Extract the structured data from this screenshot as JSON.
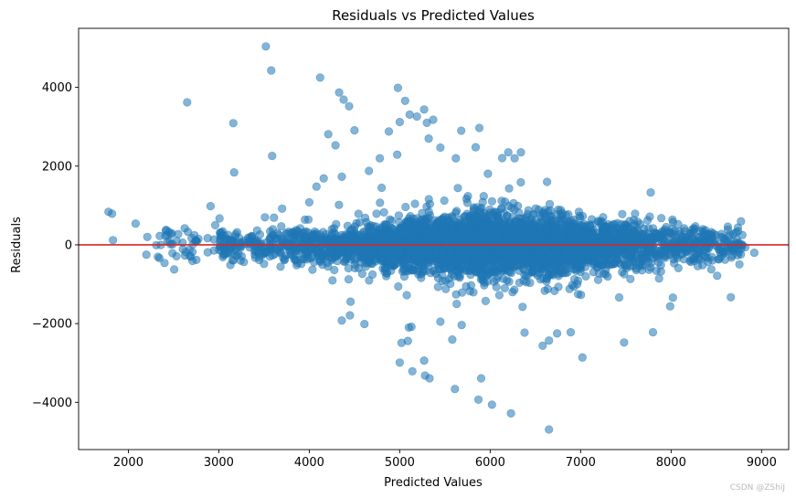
{
  "chart_data": {
    "type": "scatter",
    "title": "Residuals vs Predicted Values",
    "xlabel": "Predicted Values",
    "ylabel": "Residuals",
    "xlim": [
      1450,
      9300
    ],
    "ylim": [
      -5200,
      5500
    ],
    "xticks": [
      2000,
      3000,
      4000,
      5000,
      6000,
      7000,
      8000,
      9000
    ],
    "yticks": [
      -4000,
      -2000,
      0,
      2000,
      4000
    ],
    "ytick_labels": [
      "−4000",
      "−2000",
      "0",
      "2000",
      "4000"
    ],
    "grid": false,
    "legend": "none",
    "reference_line": {
      "y": 0,
      "color": "#d62728"
    },
    "marker_color": "#1f77b4",
    "marker_alpha": 0.55,
    "outliers": [
      [
        1780,
        840
      ],
      [
        1820,
        790
      ],
      [
        1830,
        120
      ],
      [
        2080,
        540
      ],
      [
        2210,
        200
      ],
      [
        2200,
        -250
      ],
      [
        2400,
        -460
      ],
      [
        2410,
        230
      ],
      [
        2430,
        250
      ],
      [
        2650,
        3620
      ],
      [
        2680,
        -280
      ],
      [
        2690,
        -300
      ],
      [
        2700,
        170
      ],
      [
        2960,
        500
      ],
      [
        3160,
        3090
      ],
      [
        3170,
        1840
      ],
      [
        3520,
        5040
      ],
      [
        3580,
        4430
      ],
      [
        3590,
        2260
      ],
      [
        4120,
        4250
      ],
      [
        4210,
        2810
      ],
      [
        4290,
        2530
      ],
      [
        4330,
        3870
      ],
      [
        4360,
        1730
      ],
      [
        4380,
        3690
      ],
      [
        4440,
        3520
      ],
      [
        4500,
        2910
      ],
      [
        4880,
        2880
      ],
      [
        4980,
        3990
      ],
      [
        5000,
        3120
      ],
      [
        5060,
        3660
      ],
      [
        5110,
        3310
      ],
      [
        5190,
        3260
      ],
      [
        5270,
        3440
      ],
      [
        5300,
        3100
      ],
      [
        5320,
        2700
      ],
      [
        5370,
        3180
      ],
      [
        5450,
        2470
      ],
      [
        5620,
        2200
      ],
      [
        5680,
        2900
      ],
      [
        5840,
        2480
      ],
      [
        5880,
        2970
      ],
      [
        6200,
        2350
      ],
      [
        6270,
        2200
      ],
      [
        6340,
        2350
      ],
      [
        4360,
        -1920
      ],
      [
        4450,
        -1790
      ],
      [
        4610,
        -2010
      ],
      [
        5000,
        -2990
      ],
      [
        5020,
        -2490
      ],
      [
        5090,
        -2440
      ],
      [
        5100,
        -2100
      ],
      [
        5130,
        -2080
      ],
      [
        5140,
        -3210
      ],
      [
        5270,
        -2940
      ],
      [
        5280,
        -3320
      ],
      [
        5330,
        -3390
      ],
      [
        5450,
        -1950
      ],
      [
        5610,
        -3660
      ],
      [
        5870,
        -3930
      ],
      [
        5900,
        -3390
      ],
      [
        6020,
        -4060
      ],
      [
        6230,
        -4280
      ],
      [
        6380,
        -2230
      ],
      [
        6580,
        -2560
      ],
      [
        6650,
        -2430
      ],
      [
        6740,
        -2250
      ],
      [
        6890,
        -2220
      ],
      [
        7020,
        -2860
      ],
      [
        7480,
        -2480
      ],
      [
        7800,
        -2220
      ],
      [
        6650,
        -4690
      ],
      [
        3700,
        920
      ],
      [
        3610,
        690
      ],
      [
        3510,
        700
      ],
      [
        3870,
        360
      ],
      [
        4000,
        1080
      ],
      [
        4080,
        1480
      ],
      [
        4160,
        1690
      ],
      [
        4780,
        2200
      ],
      [
        4800,
        1450
      ],
      [
        4660,
        1880
      ],
      [
        8920,
        -200
      ],
      [
        8820,
        -60
      ],
      [
        8690,
        280
      ],
      [
        8660,
        -1330
      ],
      [
        8020,
        -1340
      ],
      [
        7990,
        -1560
      ]
    ],
    "bulk": {
      "n": 4200,
      "x_range": [
        3000,
        8800
      ],
      "note_style": "dense band centred on y = 0"
    },
    "watermark": "CSDN @ZShiJ"
  }
}
